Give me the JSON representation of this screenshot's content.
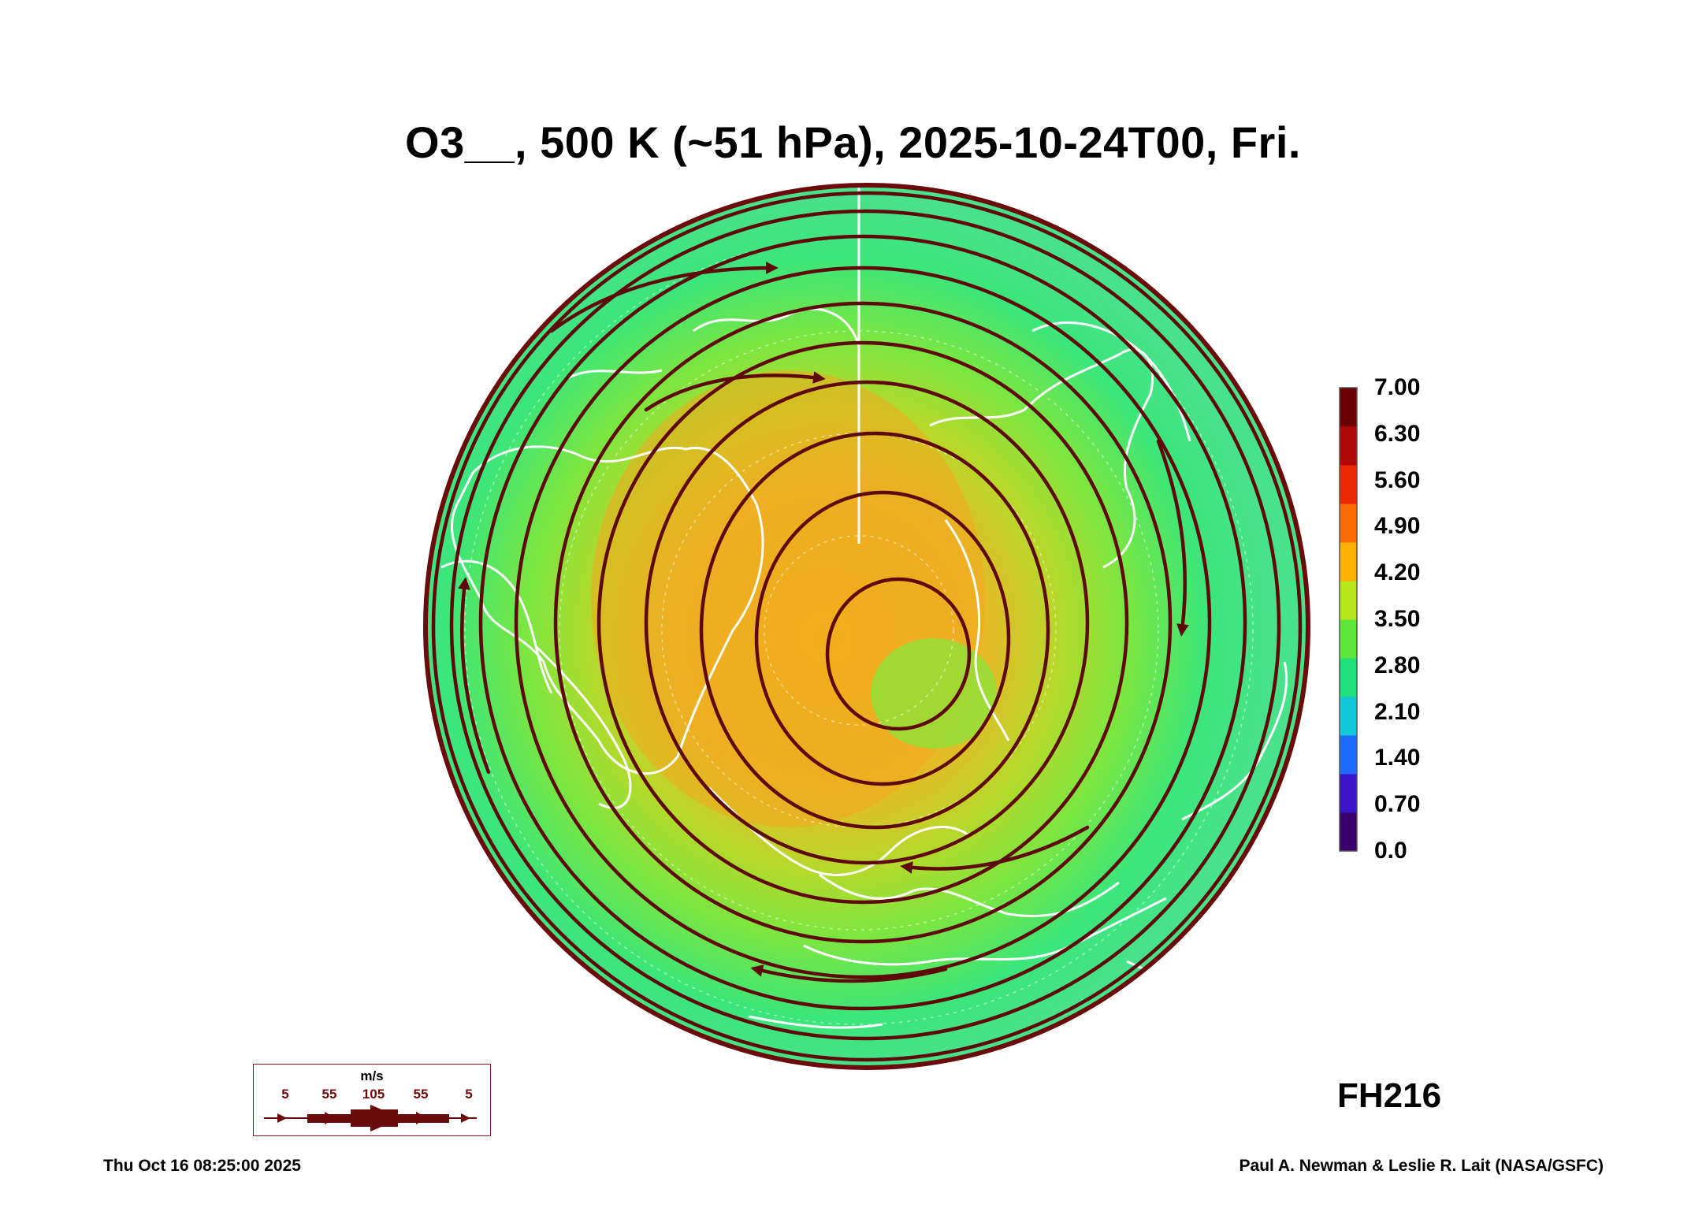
{
  "title": "O3__, 500 K (~51 hPa), 2025-10-24T00, Fri.",
  "colorbar": {
    "labels": [
      "7.00",
      "6.30",
      "5.60",
      "4.90",
      "4.20",
      "3.50",
      "2.80",
      "2.10",
      "1.40",
      "0.70",
      "0.0"
    ],
    "stops": [
      "#3b006b",
      "#3a12c8",
      "#1e6cff",
      "#12c8d8",
      "#1fe07a",
      "#5fe63a",
      "#b8e61c",
      "#ffb000",
      "#ff6a00",
      "#e82a00",
      "#b00808",
      "#6b0000"
    ]
  },
  "forecast_hour": "FH216",
  "timestamp": "Thu Oct 16 08:25:00 2025",
  "credit": "Paul A. Newman & Leslie R. Lait (NASA/GSFC)",
  "wind_legend": {
    "unit": "m/s",
    "ticks": [
      "5",
      "55",
      "105",
      "55",
      "5"
    ]
  },
  "colors": {
    "streamline": "#5e0a0a",
    "coastline": "#ffffff",
    "field_high": "#f0b11a",
    "field_mid": "#9be83a",
    "field_low": "#2fe690",
    "map_edge": "#6b0b0b"
  }
}
